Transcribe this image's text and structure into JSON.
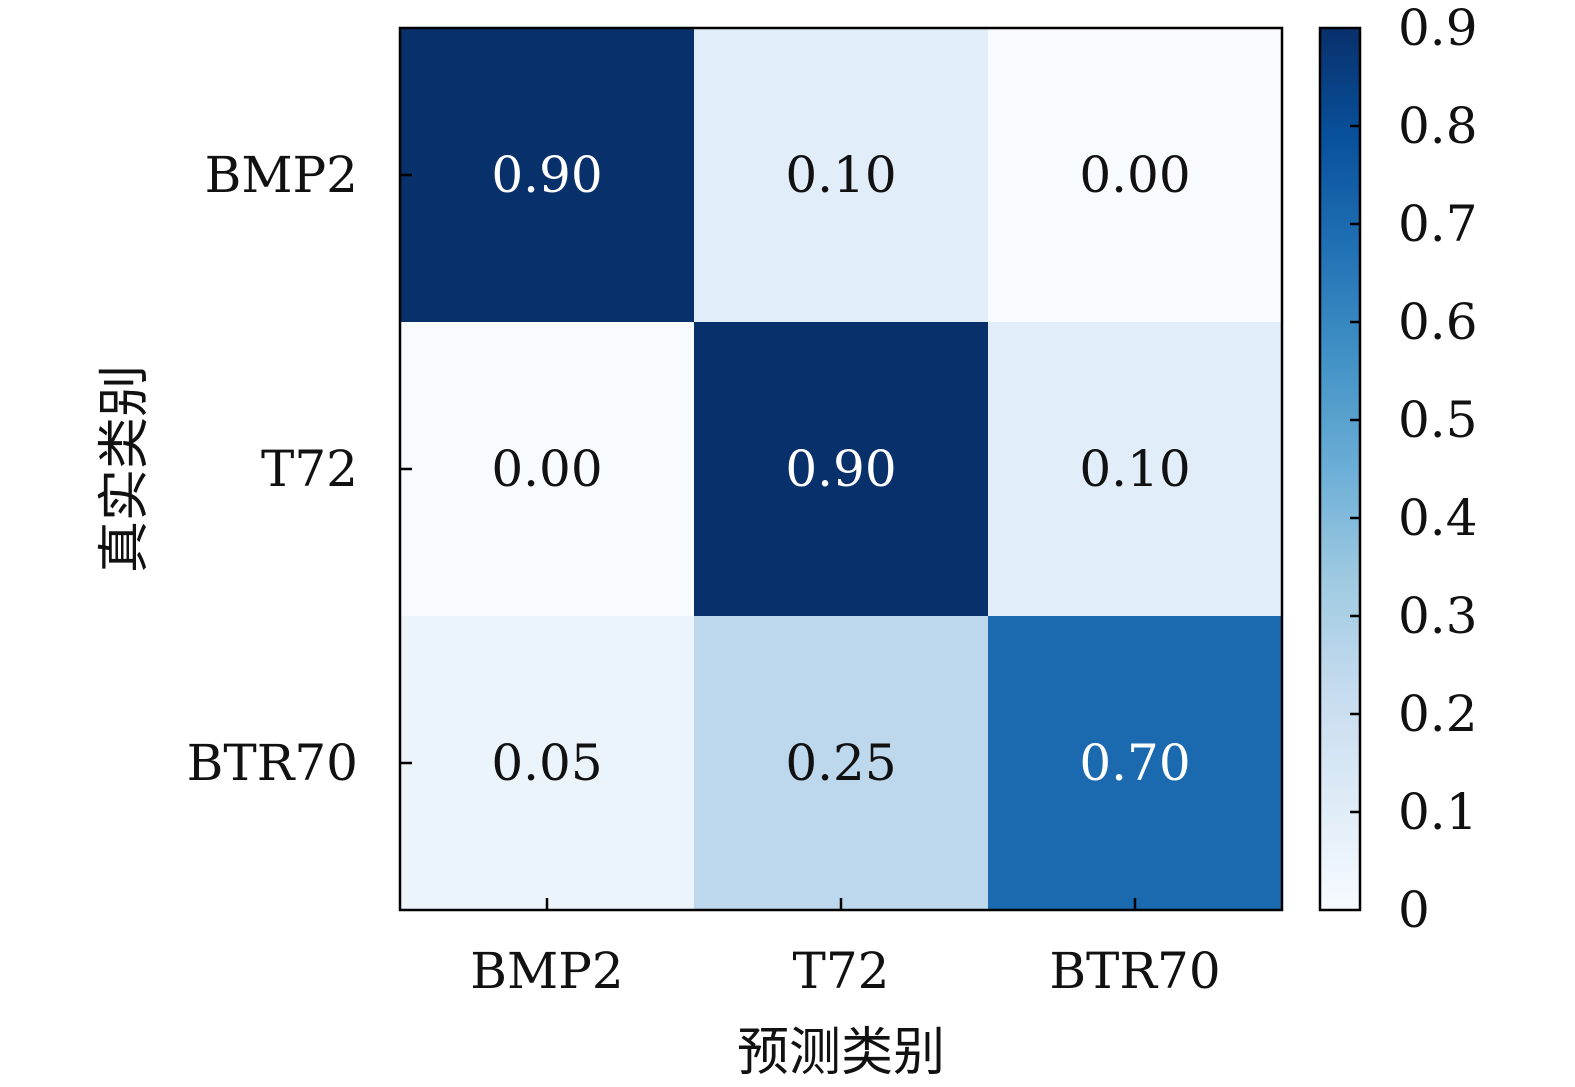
{
  "chart_data": {
    "type": "heatmap",
    "title": "",
    "xlabel": "预测类别",
    "ylabel": "真实类别",
    "x_categories": [
      "BMP2",
      "T72",
      "BTR70"
    ],
    "y_categories": [
      "BMP2",
      "T72",
      "BTR70"
    ],
    "values": [
      [
        0.9,
        0.1,
        0.0
      ],
      [
        0.0,
        0.9,
        0.1
      ],
      [
        0.05,
        0.25,
        0.7
      ]
    ],
    "cell_labels": [
      [
        "0.90",
        "0.10",
        "0.00"
      ],
      [
        "0.00",
        "0.90",
        "0.10"
      ],
      [
        "0.05",
        "0.25",
        "0.70"
      ]
    ],
    "colormap": "Blues",
    "colorbar": {
      "range": [
        0,
        0.9
      ],
      "ticks": [
        0,
        0.1,
        0.2,
        0.3,
        0.4,
        0.5,
        0.6,
        0.7,
        0.8,
        0.9
      ],
      "tick_labels": [
        "0",
        "0.1",
        "0.2",
        "0.3",
        "0.4",
        "0.5",
        "0.6",
        "0.7",
        "0.8",
        "0.9"
      ]
    },
    "colors": {
      "low": "#f7fbff",
      "high": "#08306b",
      "text_light": "#ffffff",
      "text_dark": "#111111"
    }
  }
}
